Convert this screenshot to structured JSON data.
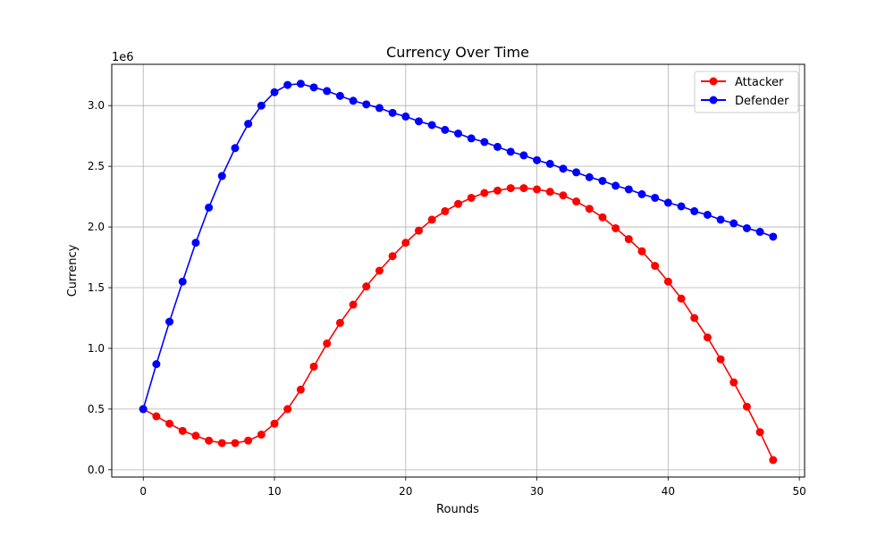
{
  "chart_data": {
    "type": "line",
    "title": "Currency Over Time",
    "xlabel": "Rounds",
    "ylabel": "Currency",
    "y_scale_label": "1e6",
    "xlim": [
      -2.4,
      50.4
    ],
    "ylim": [
      -0.06,
      3.34
    ],
    "xticks": [
      0,
      10,
      20,
      30,
      40,
      50
    ],
    "xtick_labels": [
      "0",
      "10",
      "20",
      "30",
      "40",
      "50"
    ],
    "yticks": [
      0.0,
      0.5,
      1.0,
      1.5,
      2.0,
      2.5,
      3.0
    ],
    "ytick_labels": [
      "0.0",
      "0.5",
      "1.0",
      "1.5",
      "2.0",
      "2.5",
      "3.0"
    ],
    "grid": true,
    "legend_position": "top-right",
    "marker": "circle",
    "x": [
      0,
      1,
      2,
      3,
      4,
      5,
      6,
      7,
      8,
      9,
      10,
      11,
      12,
      13,
      14,
      15,
      16,
      17,
      18,
      19,
      20,
      21,
      22,
      23,
      24,
      25,
      26,
      27,
      28,
      29,
      30,
      31,
      32,
      33,
      34,
      35,
      36,
      37,
      38,
      39,
      40,
      41,
      42,
      43,
      44,
      45,
      46,
      47,
      48
    ],
    "series": [
      {
        "name": "Attacker",
        "color": "#ff0000",
        "values": [
          0.5,
          0.44,
          0.38,
          0.32,
          0.28,
          0.24,
          0.22,
          0.22,
          0.24,
          0.29,
          0.38,
          0.5,
          0.66,
          0.85,
          1.04,
          1.21,
          1.36,
          1.51,
          1.64,
          1.76,
          1.87,
          1.97,
          2.06,
          2.13,
          2.19,
          2.24,
          2.28,
          2.3,
          2.32,
          2.32,
          2.31,
          2.29,
          2.26,
          2.21,
          2.15,
          2.08,
          1.99,
          1.9,
          1.8,
          1.68,
          1.55,
          1.41,
          1.25,
          1.09,
          0.91,
          0.72,
          0.52,
          0.31,
          0.08
        ]
      },
      {
        "name": "Defender",
        "color": "#0000ff",
        "values": [
          0.5,
          0.87,
          1.22,
          1.55,
          1.87,
          2.16,
          2.42,
          2.65,
          2.85,
          3.0,
          3.11,
          3.17,
          3.18,
          3.15,
          3.12,
          3.08,
          3.04,
          3.01,
          2.98,
          2.94,
          2.91,
          2.87,
          2.84,
          2.8,
          2.77,
          2.73,
          2.7,
          2.66,
          2.62,
          2.59,
          2.55,
          2.52,
          2.48,
          2.45,
          2.41,
          2.38,
          2.34,
          2.31,
          2.27,
          2.24,
          2.2,
          2.17,
          2.13,
          2.1,
          2.06,
          2.03,
          1.99,
          1.96,
          1.92
        ]
      }
    ]
  }
}
